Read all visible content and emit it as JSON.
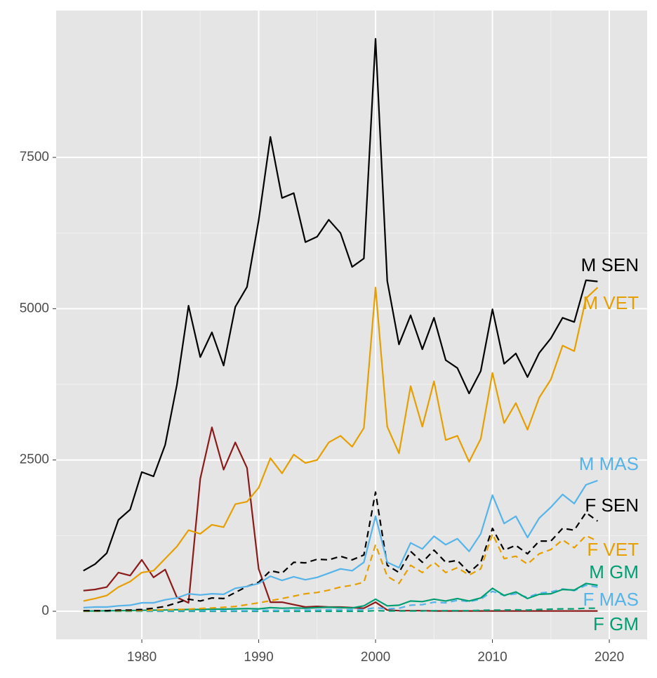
{
  "chart_data": {
    "type": "line",
    "x": [
      1975,
      1976,
      1977,
      1978,
      1979,
      1980,
      1981,
      1982,
      1983,
      1984,
      1985,
      1986,
      1987,
      1988,
      1989,
      1990,
      1991,
      1992,
      1993,
      1994,
      1995,
      1996,
      1997,
      1998,
      1999,
      2000,
      2001,
      2002,
      2003,
      2004,
      2005,
      2006,
      2007,
      2008,
      2009,
      2010,
      2011,
      2012,
      2013,
      2014,
      2015,
      2016,
      2017,
      2018,
      2019
    ],
    "series": [
      {
        "name": "M SEN",
        "color": "#000000",
        "dashed": false,
        "values": [
          670,
          780,
          960,
          1510,
          1680,
          2300,
          2230,
          2750,
          3740,
          5050,
          4200,
          4610,
          4060,
          5030,
          5360,
          6460,
          7840,
          6830,
          6910,
          6100,
          6190,
          6470,
          6250,
          5690,
          5830,
          9460,
          5460,
          4410,
          4890,
          4330,
          4850,
          4150,
          4020,
          3600,
          3970,
          4990,
          4090,
          4260,
          3870,
          4270,
          4510,
          4850,
          4780,
          5470,
          5450
        ]
      },
      {
        "name": "M VET",
        "color": "#E69F00",
        "dashed": false,
        "values": [
          170,
          210,
          260,
          400,
          490,
          640,
          670,
          870,
          1070,
          1340,
          1280,
          1430,
          1390,
          1770,
          1810,
          2040,
          2530,
          2280,
          2590,
          2450,
          2500,
          2790,
          2900,
          2720,
          3030,
          5350,
          3050,
          2610,
          3720,
          3050,
          3800,
          2830,
          2900,
          2470,
          2850,
          3940,
          3110,
          3440,
          3000,
          3530,
          3830,
          4390,
          4300,
          5170,
          5350
        ]
      },
      {
        "name": "M MAS",
        "color": "#56B4E9",
        "dashed": false,
        "values": [
          60,
          70,
          70,
          90,
          100,
          140,
          140,
          190,
          220,
          290,
          270,
          290,
          280,
          380,
          410,
          460,
          580,
          510,
          570,
          520,
          560,
          630,
          700,
          670,
          810,
          1570,
          810,
          720,
          1130,
          1030,
          1240,
          1100,
          1200,
          990,
          1280,
          1920,
          1450,
          1570,
          1220,
          1540,
          1720,
          1930,
          1780,
          2090,
          2160
        ]
      },
      {
        "name": "F SEN",
        "color": "#000000",
        "dashed": true,
        "values": [
          10,
          10,
          10,
          20,
          20,
          30,
          50,
          80,
          140,
          200,
          170,
          220,
          210,
          310,
          410,
          480,
          670,
          630,
          810,
          800,
          860,
          850,
          910,
          850,
          930,
          1970,
          760,
          640,
          990,
          810,
          1010,
          810,
          840,
          640,
          810,
          1370,
          1010,
          1090,
          950,
          1160,
          1160,
          1370,
          1340,
          1630,
          1490
        ]
      },
      {
        "name": "F VET",
        "color": "#E69F00",
        "dashed": true,
        "values": [
          5,
          5,
          8,
          10,
          10,
          12,
          20,
          25,
          30,
          35,
          46,
          55,
          65,
          80,
          110,
          140,
          175,
          210,
          250,
          290,
          310,
          350,
          400,
          430,
          480,
          1100,
          580,
          460,
          760,
          640,
          810,
          640,
          720,
          600,
          700,
          1280,
          870,
          910,
          780,
          950,
          1020,
          1180,
          1050,
          1250,
          1160
        ]
      },
      {
        "name": "M GM",
        "color": "#009E73",
        "dashed": false,
        "values": [
          5,
          5,
          8,
          10,
          12,
          15,
          18,
          20,
          25,
          30,
          30,
          35,
          35,
          40,
          45,
          40,
          60,
          50,
          55,
          50,
          60,
          65,
          60,
          55,
          90,
          200,
          90,
          100,
          170,
          160,
          200,
          170,
          210,
          170,
          220,
          380,
          260,
          320,
          210,
          280,
          290,
          360,
          350,
          460,
          430
        ]
      },
      {
        "name": "F MAS",
        "color": "#56B4E9",
        "dashed": true,
        "values": [
          5,
          5,
          5,
          5,
          5,
          5,
          5,
          5,
          10,
          10,
          10,
          10,
          10,
          10,
          10,
          15,
          15,
          15,
          20,
          20,
          20,
          25,
          25,
          25,
          30,
          60,
          40,
          50,
          100,
          110,
          150,
          140,
          180,
          160,
          200,
          330,
          260,
          290,
          230,
          300,
          320,
          370,
          340,
          430,
          400
        ]
      },
      {
        "name": "F GM",
        "color": "#009E73",
        "dashed": true,
        "values": [
          0,
          0,
          0,
          0,
          0,
          0,
          0,
          0,
          0,
          0,
          0,
          0,
          0,
          0,
          0,
          0,
          0,
          0,
          0,
          0,
          0,
          0,
          0,
          0,
          0,
          10,
          5,
          5,
          5,
          5,
          10,
          10,
          10,
          10,
          15,
          20,
          20,
          25,
          20,
          30,
          35,
          40,
          40,
          50,
          50
        ]
      },
      {
        "color": "#8B1A1A",
        "dashed": false,
        "values": [
          340,
          360,
          400,
          640,
          590,
          850,
          560,
          690,
          230,
          140,
          2190,
          3040,
          2340,
          2790,
          2370,
          700,
          150,
          150,
          110,
          70,
          80,
          70,
          70,
          60,
          50,
          150,
          20,
          10,
          10,
          10,
          5,
          5,
          5,
          5,
          5,
          5,
          5,
          5,
          5,
          5,
          5,
          5,
          5,
          5,
          5
        ]
      }
    ],
    "xlim": [
      1972.67,
      2023.24
    ],
    "xticks": [
      1980,
      1990,
      2000,
      2010,
      2020
    ],
    "ylim": [
      -464,
      9927
    ],
    "yticks": [
      0,
      2500,
      5000,
      7500
    ],
    "grid": true
  }
}
